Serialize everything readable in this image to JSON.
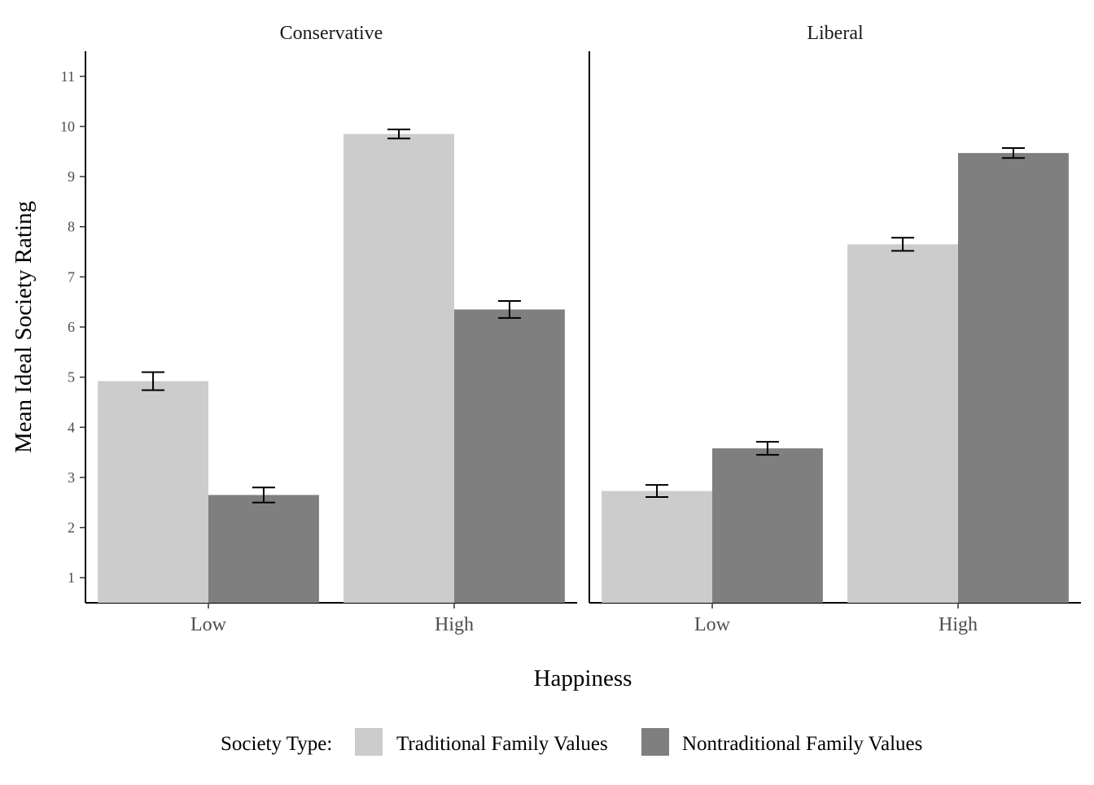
{
  "chart_data": {
    "type": "bar",
    "xlabel": "Happiness",
    "ylabel": "Mean Ideal Society Rating",
    "ylim": [
      0.5,
      11.5
    ],
    "yticks": [
      1,
      2,
      3,
      4,
      5,
      6,
      7,
      8,
      9,
      10,
      11
    ],
    "categories": [
      "Low",
      "High"
    ],
    "grid": false,
    "legend": {
      "title": "Society Type:",
      "position": "bottom",
      "entries": [
        {
          "name": "Traditional Family Values",
          "color": "#cccccc"
        },
        {
          "name": "Nontraditional Family Values",
          "color": "#7f7f7f"
        }
      ]
    },
    "facets": [
      {
        "title": "Conservative",
        "series": [
          {
            "name": "Traditional Family Values",
            "values": [
              4.92,
              9.85
            ],
            "error": [
              0.18,
              0.09
            ]
          },
          {
            "name": "Nontraditional Family Values",
            "values": [
              2.65,
              6.35
            ],
            "error": [
              0.15,
              0.17
            ]
          }
        ]
      },
      {
        "title": "Liberal",
        "series": [
          {
            "name": "Traditional Family Values",
            "values": [
              2.73,
              7.65
            ],
            "error": [
              0.12,
              0.13
            ]
          },
          {
            "name": "Nontraditional Family Values",
            "values": [
              3.58,
              9.47
            ],
            "error": [
              0.13,
              0.1
            ]
          }
        ]
      }
    ]
  }
}
